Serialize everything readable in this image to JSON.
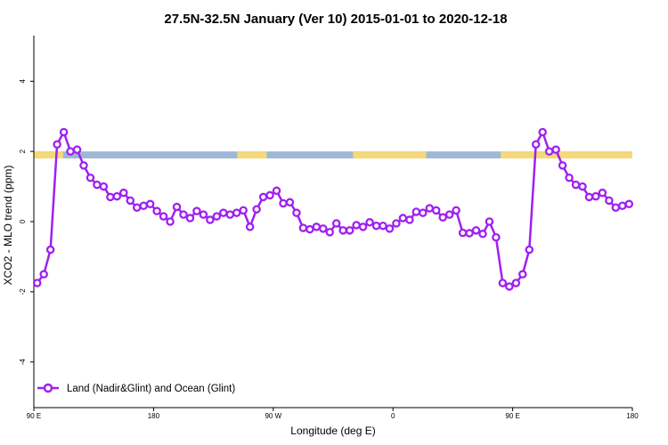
{
  "chart_data": {
    "type": "line",
    "title": "27.5N-32.5N January (Ver 10)   2015-01-01 to 2020-12-18",
    "xlabel": "Longitude (deg E)",
    "ylabel": "XCO2 - MLO trend (ppm)",
    "x_ticks": [
      {
        "value": 90,
        "label": "90 E"
      },
      {
        "value": 180,
        "label": "180"
      },
      {
        "value": 270,
        "label": "90 W"
      },
      {
        "value": 360,
        "label": "0"
      },
      {
        "value": 450,
        "label": "90 E"
      },
      {
        "value": 540,
        "label": "180"
      }
    ],
    "y_ticks": [
      {
        "value": -4,
        "label": "-4"
      },
      {
        "value": -2,
        "label": "-2"
      },
      {
        "value": 0,
        "label": "0"
      },
      {
        "value": 2,
        "label": "2"
      },
      {
        "value": 4,
        "label": "4"
      }
    ],
    "xlim": [
      90,
      540
    ],
    "ylim": [
      -5.3,
      5.3
    ],
    "surface_band": {
      "y_range": [
        1.8,
        2.0
      ],
      "ocean_color": "#9fb8d8",
      "land_color": "#f5d978",
      "land_segments": [
        [
          90,
          112
        ],
        [
          243,
          265
        ],
        [
          330,
          385
        ],
        [
          441,
          540
        ]
      ]
    },
    "series": [
      {
        "name": "Land (Nadir&Glint) and Ocean (Glint)",
        "color": "#a020f0",
        "x": [
          92.5,
          97.5,
          102.5,
          107.5,
          112.5,
          117.5,
          122.5,
          127.5,
          132.5,
          137.5,
          142.5,
          147.5,
          152.5,
          157.5,
          162.5,
          167.5,
          172.5,
          177.5,
          182.5,
          187.5,
          192.5,
          197.5,
          202.5,
          207.5,
          212.5,
          217.5,
          222.5,
          227.5,
          232.5,
          237.5,
          242.5,
          247.5,
          252.5,
          257.5,
          262.5,
          267.5,
          272.5,
          277.5,
          282.5,
          287.5,
          292.5,
          297.5,
          302.5,
          307.5,
          312.5,
          317.5,
          322.5,
          327.5,
          332.5,
          337.5,
          342.5,
          347.5,
          352.5,
          357.5,
          362.5,
          367.5,
          372.5,
          377.5,
          382.5,
          387.5,
          392.5,
          397.5,
          402.5,
          407.5,
          412.5,
          417.5,
          422.5,
          427.5,
          432.5,
          437.5,
          442.5,
          447.5,
          452.5,
          457.5,
          462.5,
          467.5,
          472.5,
          477.5,
          482.5,
          487.5,
          492.5,
          497.5,
          502.5,
          507.5,
          512.5,
          517.5,
          522.5,
          527.5,
          532.5,
          537.5
        ],
        "y": [
          -1.75,
          -1.5,
          -0.8,
          2.2,
          2.55,
          2.0,
          2.05,
          1.6,
          1.25,
          1.05,
          1.0,
          0.7,
          0.72,
          0.82,
          0.6,
          0.4,
          0.45,
          0.5,
          0.3,
          0.15,
          0.0,
          0.42,
          0.2,
          0.1,
          0.3,
          0.2,
          0.05,
          0.15,
          0.25,
          0.2,
          0.25,
          0.32,
          -0.15,
          0.35,
          0.7,
          0.75,
          0.88,
          0.52,
          0.55,
          0.25,
          -0.18,
          -0.22,
          -0.15,
          -0.2,
          -0.3,
          -0.05,
          -0.25,
          -0.25,
          -0.1,
          -0.15,
          -0.02,
          -0.12,
          -0.12,
          -0.2,
          -0.05,
          0.1,
          0.05,
          0.28,
          0.25,
          0.38,
          0.32,
          0.12,
          0.2,
          0.32,
          -0.32,
          -0.33,
          -0.25,
          -0.35,
          0.0,
          -0.45,
          -1.75,
          -1.85,
          -1.75,
          -1.5,
          -0.8,
          2.2,
          2.55,
          2.0,
          2.05,
          1.6,
          1.25,
          1.05,
          1.0,
          0.7,
          0.72,
          0.82,
          0.6,
          0.4,
          0.45,
          0.5
        ]
      }
    ],
    "legend_position": "bottom-left"
  }
}
